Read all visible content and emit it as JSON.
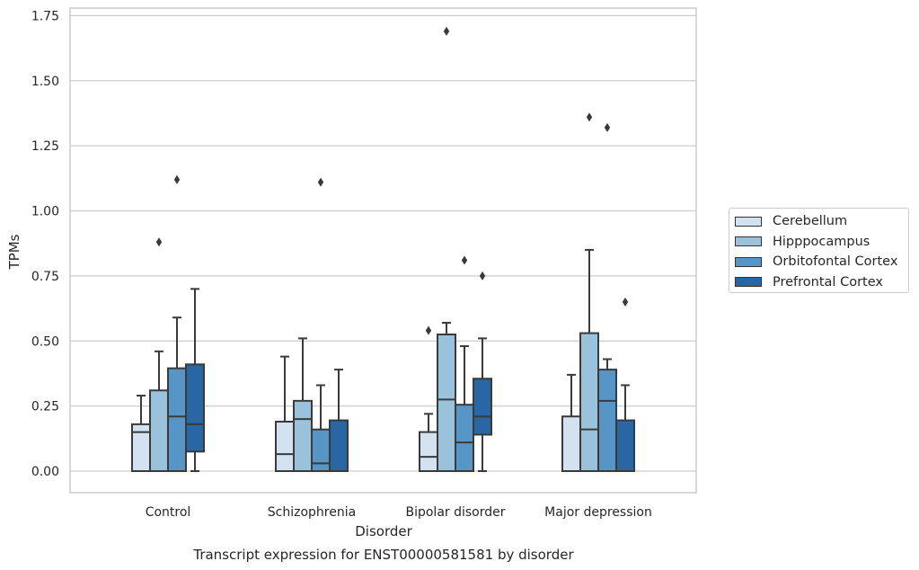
{
  "chart_data": {
    "type": "box",
    "title": "Transcript expression for ENST00000581581 by disorder",
    "xlabel": "Disorder",
    "ylabel": "TPMs",
    "ylim": [
      -0.08,
      1.77
    ],
    "yticks": [
      "0.00",
      "0.25",
      "0.50",
      "0.75",
      "1.00",
      "1.25",
      "1.50",
      "1.75"
    ],
    "grid": "horizontal",
    "legend_position": "right",
    "categories": [
      "Control",
      "Schizophrenia",
      "Bipolar disorder",
      "Major depression"
    ],
    "series": [
      {
        "name": "Cerebellum",
        "color": "#d2e2f1",
        "boxes": [
          {
            "whisker_low": 0.0,
            "q1": 0.0,
            "median": 0.15,
            "q3": 0.18,
            "whisker_high": 0.29,
            "outliers": []
          },
          {
            "whisker_low": 0.0,
            "q1": 0.0,
            "median": 0.065,
            "q3": 0.19,
            "whisker_high": 0.44,
            "outliers": []
          },
          {
            "whisker_low": 0.0,
            "q1": 0.0,
            "median": 0.055,
            "q3": 0.15,
            "whisker_high": 0.22,
            "outliers": [
              0.54
            ]
          },
          {
            "whisker_low": 0.0,
            "q1": 0.0,
            "median": 0.0,
            "q3": 0.21,
            "whisker_high": 0.37,
            "outliers": []
          }
        ]
      },
      {
        "name": "Hipppocampus",
        "color": "#9ac2db",
        "boxes": [
          {
            "whisker_low": 0.0,
            "q1": 0.0,
            "median": 0.0,
            "q3": 0.31,
            "whisker_high": 0.46,
            "outliers": [
              0.88
            ]
          },
          {
            "whisker_low": 0.0,
            "q1": 0.0,
            "median": 0.2,
            "q3": 0.27,
            "whisker_high": 0.51,
            "outliers": []
          },
          {
            "whisker_low": 0.0,
            "q1": 0.0,
            "median": 0.275,
            "q3": 0.525,
            "whisker_high": 0.57,
            "outliers": [
              1.69
            ]
          },
          {
            "whisker_low": 0.0,
            "q1": 0.0,
            "median": 0.16,
            "q3": 0.53,
            "whisker_high": 0.85,
            "outliers": [
              1.36
            ]
          }
        ]
      },
      {
        "name": "Orbitofontal Cortex",
        "color": "#5696c6",
        "boxes": [
          {
            "whisker_low": 0.0,
            "q1": 0.0,
            "median": 0.21,
            "q3": 0.395,
            "whisker_high": 0.59,
            "outliers": [
              1.12
            ]
          },
          {
            "whisker_low": 0.0,
            "q1": 0.0,
            "median": 0.03,
            "q3": 0.16,
            "whisker_high": 0.33,
            "outliers": [
              1.11
            ]
          },
          {
            "whisker_low": 0.0,
            "q1": 0.0,
            "median": 0.11,
            "q3": 0.255,
            "whisker_high": 0.48,
            "outliers": [
              0.81
            ]
          },
          {
            "whisker_low": 0.0,
            "q1": 0.0,
            "median": 0.27,
            "q3": 0.39,
            "whisker_high": 0.43,
            "outliers": [
              1.32
            ]
          }
        ]
      },
      {
        "name": "Prefrontal Cortex",
        "color": "#2866a4",
        "boxes": [
          {
            "whisker_low": 0.0,
            "q1": 0.075,
            "median": 0.18,
            "q3": 0.41,
            "whisker_high": 0.7,
            "outliers": []
          },
          {
            "whisker_low": 0.0,
            "q1": 0.0,
            "median": 0.0,
            "q3": 0.195,
            "whisker_high": 0.39,
            "outliers": []
          },
          {
            "whisker_low": 0.0,
            "q1": 0.14,
            "median": 0.21,
            "q3": 0.355,
            "whisker_high": 0.51,
            "outliers": [
              0.75
            ]
          },
          {
            "whisker_low": 0.0,
            "q1": 0.0,
            "median": 0.0,
            "q3": 0.195,
            "whisker_high": 0.33,
            "outliers": [
              0.65
            ]
          }
        ]
      }
    ]
  }
}
